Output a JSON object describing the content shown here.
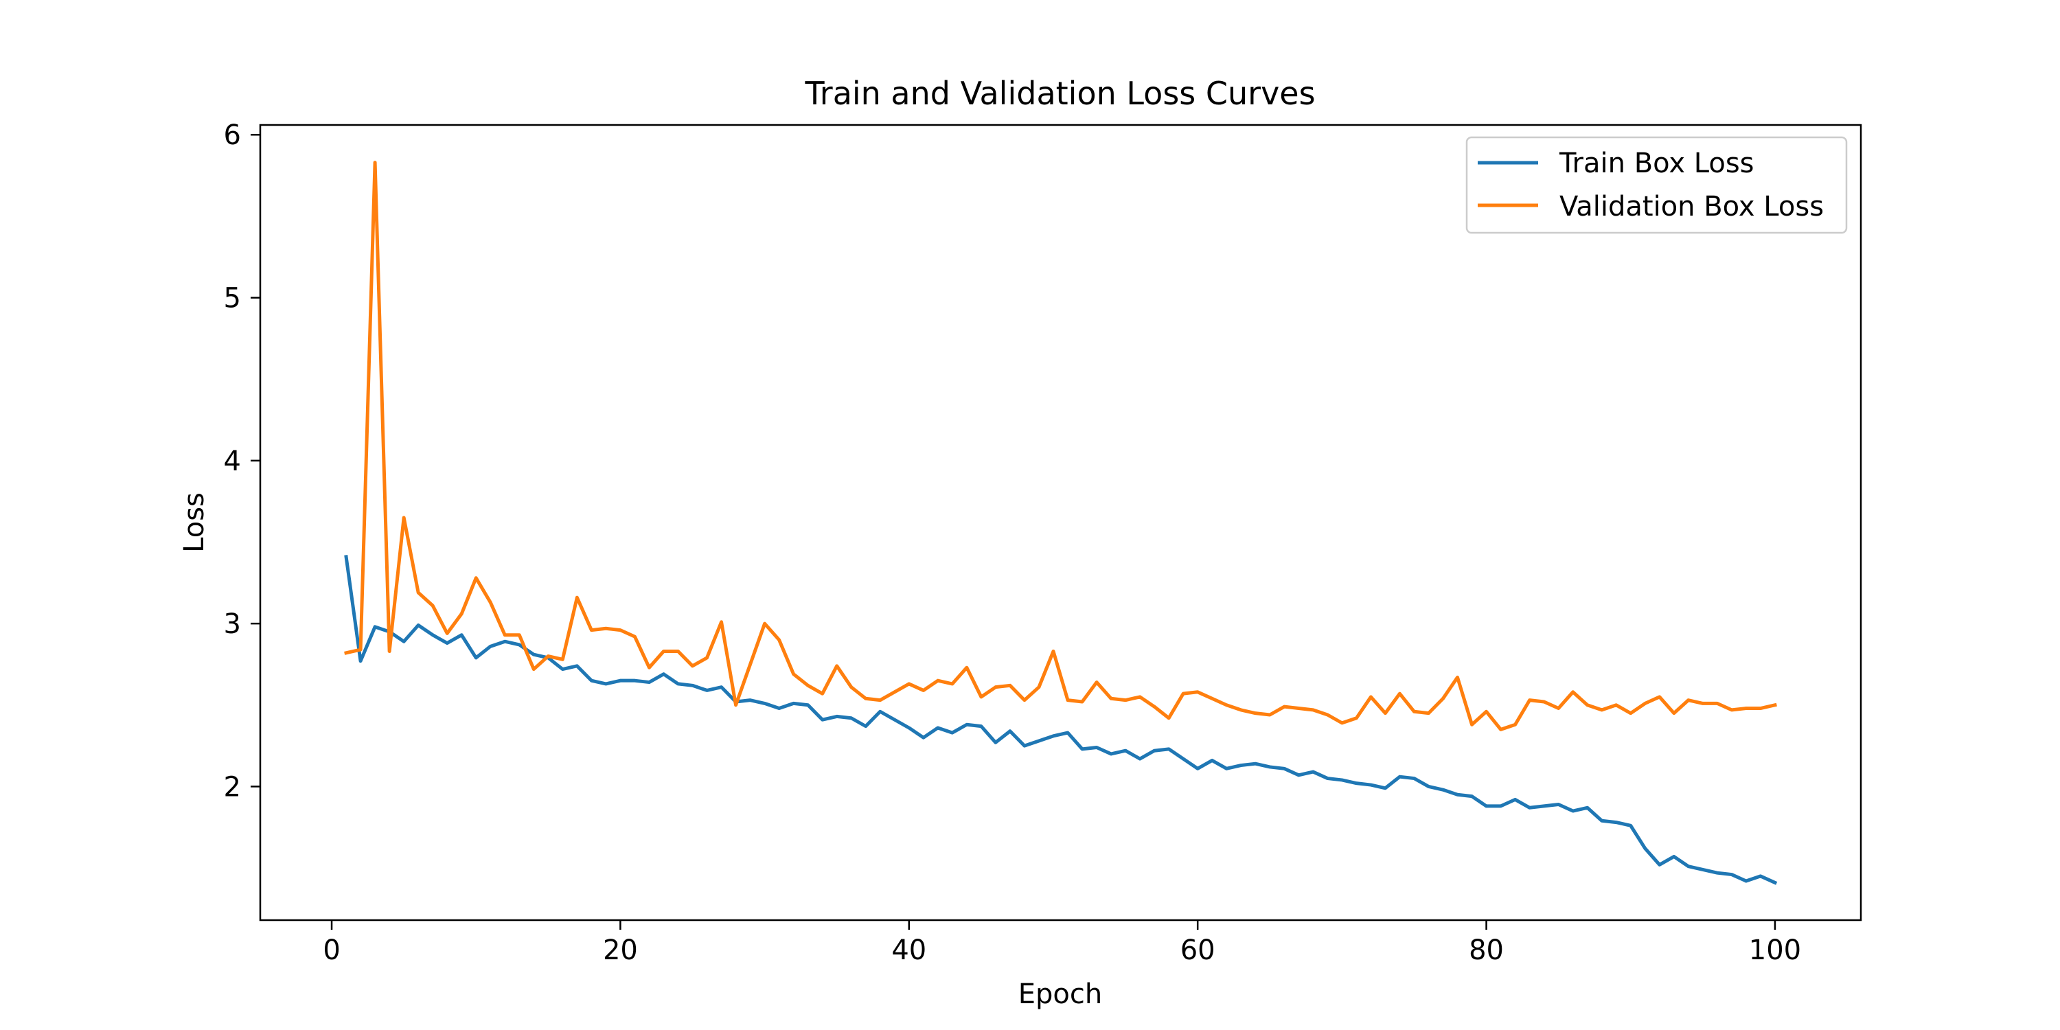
{
  "chart_data": {
    "type": "line",
    "title": "Train and Validation Loss Curves",
    "xlabel": "Epoch",
    "ylabel": "Loss",
    "xlim": [
      -4.95,
      105.95
    ],
    "ylim": [
      1.18,
      6.06
    ],
    "x_ticks": [
      0,
      20,
      40,
      60,
      80,
      100
    ],
    "x_tick_labels": [
      "0",
      "20",
      "40",
      "60",
      "80",
      "100"
    ],
    "y_ticks": [
      2,
      3,
      4,
      5,
      6
    ],
    "y_tick_labels": [
      "2",
      "3",
      "4",
      "5",
      "6"
    ],
    "grid": false,
    "legend_position": "top-right",
    "x": [
      1,
      2,
      3,
      4,
      5,
      6,
      7,
      8,
      9,
      10,
      11,
      12,
      13,
      14,
      15,
      16,
      17,
      18,
      19,
      20,
      21,
      22,
      23,
      24,
      25,
      26,
      27,
      28,
      29,
      30,
      31,
      32,
      33,
      34,
      35,
      36,
      37,
      38,
      39,
      40,
      41,
      42,
      43,
      44,
      45,
      46,
      47,
      48,
      49,
      50,
      51,
      52,
      53,
      54,
      55,
      56,
      57,
      58,
      59,
      60,
      61,
      62,
      63,
      64,
      65,
      66,
      67,
      68,
      69,
      70,
      71,
      72,
      73,
      74,
      75,
      76,
      77,
      78,
      79,
      80,
      81,
      82,
      83,
      84,
      85,
      86,
      87,
      88,
      89,
      90,
      91,
      92,
      93,
      94,
      95,
      96,
      97,
      98,
      99,
      100
    ],
    "series": [
      {
        "name": "Train Box Loss",
        "color": "#1f77b4",
        "values": [
          3.41,
          2.77,
          2.98,
          2.95,
          2.89,
          2.99,
          2.93,
          2.88,
          2.93,
          2.79,
          2.86,
          2.89,
          2.87,
          2.81,
          2.79,
          2.72,
          2.74,
          2.65,
          2.63,
          2.65,
          2.65,
          2.64,
          2.69,
          2.63,
          2.62,
          2.59,
          2.61,
          2.52,
          2.53,
          2.51,
          2.48,
          2.51,
          2.5,
          2.41,
          2.43,
          2.42,
          2.37,
          2.46,
          2.41,
          2.36,
          2.3,
          2.36,
          2.33,
          2.38,
          2.37,
          2.27,
          2.34,
          2.25,
          2.28,
          2.31,
          2.33,
          2.23,
          2.24,
          2.2,
          2.22,
          2.17,
          2.22,
          2.23,
          2.17,
          2.11,
          2.16,
          2.11,
          2.13,
          2.14,
          2.12,
          2.11,
          2.07,
          2.09,
          2.05,
          2.04,
          2.02,
          2.01,
          1.99,
          2.06,
          2.05,
          2.0,
          1.98,
          1.95,
          1.94,
          1.88,
          1.88,
          1.92,
          1.87,
          1.88,
          1.89,
          1.85,
          1.87,
          1.79,
          1.78,
          1.76,
          1.62,
          1.52,
          1.57,
          1.51,
          1.49,
          1.47,
          1.46,
          1.42,
          1.45,
          1.41
        ]
      },
      {
        "name": "Validation Box Loss",
        "color": "#ff7f0e",
        "values": [
          2.82,
          2.84,
          5.83,
          2.83,
          3.65,
          3.19,
          3.11,
          2.94,
          3.06,
          3.28,
          3.13,
          2.93,
          2.93,
          2.72,
          2.8,
          2.78,
          3.16,
          2.96,
          2.97,
          2.96,
          2.92,
          2.73,
          2.83,
          2.83,
          2.74,
          2.79,
          3.01,
          2.5,
          2.75,
          3.0,
          2.9,
          2.69,
          2.62,
          2.57,
          2.74,
          2.61,
          2.54,
          2.53,
          2.58,
          2.63,
          2.59,
          2.65,
          2.63,
          2.73,
          2.55,
          2.61,
          2.62,
          2.53,
          2.61,
          2.83,
          2.53,
          2.52,
          2.64,
          2.54,
          2.53,
          2.55,
          2.49,
          2.42,
          2.57,
          2.58,
          2.54,
          2.5,
          2.47,
          2.45,
          2.44,
          2.49,
          2.48,
          2.47,
          2.44,
          2.39,
          2.42,
          2.55,
          2.45,
          2.57,
          2.46,
          2.45,
          2.54,
          2.67,
          2.38,
          2.46,
          2.35,
          2.38,
          2.53,
          2.52,
          2.48,
          2.58,
          2.5,
          2.47,
          2.5,
          2.45,
          2.51,
          2.55,
          2.45,
          2.53,
          2.51,
          2.51,
          2.47,
          2.48,
          2.48,
          2.5
        ]
      }
    ]
  }
}
